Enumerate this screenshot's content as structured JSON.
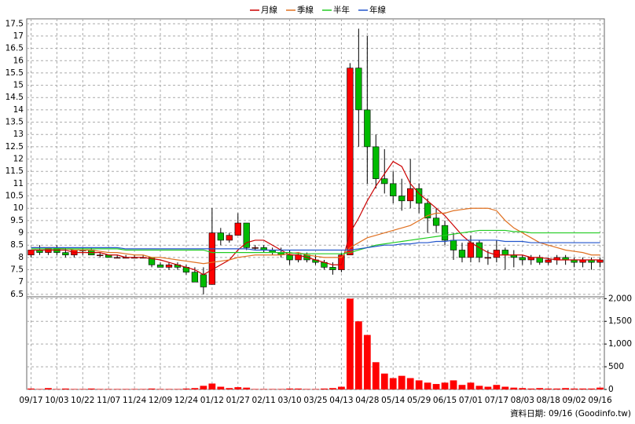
{
  "chart_data": {
    "type": "candlestick",
    "categories": [
      "09/17",
      null,
      null,
      "10/03",
      null,
      null,
      "10/22",
      null,
      null,
      "11/07",
      null,
      null,
      "11/24",
      null,
      null,
      "12/09",
      null,
      null,
      "12/24",
      null,
      null,
      "01/12",
      null,
      null,
      "01/27",
      null,
      null,
      "02/11",
      null,
      null,
      "03/10",
      null,
      null,
      "03/25",
      null,
      null,
      "04/13",
      null,
      null,
      "04/28",
      null,
      null,
      "05/14",
      null,
      null,
      "05/29",
      null,
      null,
      "06/15",
      null,
      null,
      "07/01",
      null,
      null,
      "07/17",
      null,
      null,
      "08/03",
      null,
      null,
      "08/18",
      null,
      null,
      "09/02",
      null,
      null,
      "09/16"
    ],
    "open": [
      8.1,
      8.3,
      8.2,
      8.4,
      8.2,
      8.1,
      8.3,
      8.3,
      8.1,
      8.1,
      8.0,
      8.0,
      8.0,
      8.0,
      8.0,
      7.7,
      7.6,
      7.7,
      7.6,
      7.4,
      7.3,
      6.9,
      9.0,
      8.7,
      8.9,
      9.4,
      8.4,
      8.4,
      8.3,
      8.2,
      8.1,
      7.9,
      8.1,
      7.9,
      7.8,
      7.6,
      7.5,
      8.1,
      15.7,
      14.0,
      12.5,
      11.2,
      11.0,
      10.5,
      10.3,
      10.8,
      10.2,
      9.6,
      9.3,
      8.7,
      8.3,
      8.0,
      8.6,
      8.0,
      8.0,
      8.3,
      8.1,
      8.0,
      7.9,
      8.0,
      7.8,
      7.9,
      8.0,
      7.9,
      7.8,
      7.9,
      7.8
    ],
    "high": [
      8.3,
      8.5,
      8.4,
      8.5,
      8.4,
      8.3,
      8.4,
      8.4,
      8.2,
      8.1,
      8.1,
      8.1,
      8.1,
      8.1,
      8.0,
      7.8,
      7.8,
      7.8,
      7.7,
      7.6,
      7.6,
      10.0,
      9.2,
      9.0,
      9.8,
      9.4,
      8.5,
      8.5,
      8.4,
      8.4,
      8.3,
      8.2,
      8.2,
      8.1,
      7.9,
      7.8,
      8.2,
      15.9,
      17.3,
      17.0,
      13.0,
      12.4,
      11.5,
      11.2,
      12.0,
      11.0,
      10.4,
      10.0,
      9.5,
      9.0,
      8.6,
      8.9,
      8.7,
      8.3,
      8.7,
      8.4,
      8.3,
      8.1,
      8.1,
      8.1,
      8.0,
      8.1,
      8.1,
      8.0,
      8.0,
      8.0,
      8.0
    ],
    "low": [
      8.0,
      8.1,
      8.1,
      8.1,
      8.0,
      8.0,
      8.1,
      8.1,
      8.0,
      8.0,
      8.0,
      8.0,
      8.0,
      8.0,
      7.6,
      7.6,
      7.5,
      7.5,
      7.3,
      7.0,
      6.5,
      6.9,
      8.5,
      8.6,
      8.9,
      8.3,
      8.3,
      8.2,
      8.1,
      8.0,
      7.7,
      7.8,
      7.8,
      7.7,
      7.5,
      7.3,
      7.4,
      8.1,
      12.5,
      11.0,
      10.8,
      10.6,
      10.2,
      9.9,
      10.0,
      9.8,
      9.0,
      9.0,
      8.5,
      7.9,
      7.8,
      7.8,
      7.8,
      7.7,
      7.8,
      7.5,
      7.6,
      7.7,
      7.7,
      7.7,
      7.7,
      7.7,
      7.7,
      7.6,
      7.6,
      7.5,
      7.6
    ],
    "close": [
      8.3,
      8.2,
      8.4,
      8.2,
      8.1,
      8.3,
      8.3,
      8.1,
      8.1,
      8.0,
      8.0,
      8.0,
      8.0,
      8.0,
      7.7,
      7.6,
      7.7,
      7.6,
      7.4,
      7.0,
      6.8,
      9.0,
      8.7,
      8.9,
      9.4,
      8.4,
      8.4,
      8.3,
      8.2,
      8.1,
      7.9,
      8.1,
      7.9,
      7.8,
      7.6,
      7.5,
      8.1,
      15.7,
      14.0,
      12.5,
      11.2,
      11.0,
      10.5,
      10.3,
      10.8,
      10.2,
      9.6,
      9.3,
      8.7,
      8.3,
      8.0,
      8.6,
      8.0,
      8.0,
      8.3,
      8.1,
      8.0,
      7.9,
      8.0,
      7.8,
      7.9,
      8.0,
      7.9,
      7.8,
      7.9,
      7.8,
      7.9
    ],
    "up_color": "#ff0000",
    "down_color": "#00bb00",
    "series": [
      {
        "name": "月線",
        "color": "#cc0000",
        "values": [
          8.3,
          8.3,
          8.3,
          8.3,
          8.3,
          8.2,
          8.2,
          8.2,
          8.2,
          8.1,
          8.1,
          8.0,
          8.0,
          8.0,
          7.95,
          7.9,
          7.8,
          7.7,
          7.6,
          7.5,
          7.3,
          7.5,
          7.7,
          7.9,
          8.3,
          8.6,
          8.7,
          8.7,
          8.5,
          8.3,
          8.1,
          8.1,
          8.0,
          7.9,
          7.8,
          7.7,
          7.7,
          9.0,
          9.6,
          10.3,
          10.9,
          11.4,
          11.9,
          11.7,
          11.0,
          10.6,
          10.3,
          10.0,
          9.7,
          9.3,
          8.9,
          8.6,
          8.4,
          8.2,
          8.1,
          8.1,
          8.1,
          8.1,
          8.0,
          8.0,
          7.95,
          7.9,
          7.9,
          7.9,
          7.9,
          7.9,
          7.9
        ]
      },
      {
        "name": "季線",
        "color": "#e07020",
        "values": [
          8.4,
          8.4,
          8.4,
          8.4,
          8.35,
          8.3,
          8.3,
          8.3,
          8.25,
          8.2,
          8.2,
          8.15,
          8.1,
          8.1,
          8.0,
          8.0,
          7.95,
          7.9,
          7.85,
          7.8,
          7.75,
          7.8,
          7.85,
          7.9,
          8.0,
          8.05,
          8.1,
          8.1,
          8.1,
          8.1,
          8.15,
          8.2,
          8.1,
          8.05,
          8.0,
          8.0,
          8.0,
          8.4,
          8.6,
          8.8,
          8.9,
          9.0,
          9.1,
          9.2,
          9.3,
          9.5,
          9.7,
          9.8,
          9.8,
          9.9,
          9.95,
          10.0,
          10.0,
          10.0,
          9.9,
          9.5,
          9.2,
          9.0,
          8.8,
          8.6,
          8.5,
          8.4,
          8.3,
          8.25,
          8.2,
          8.1,
          8.1
        ]
      },
      {
        "name": "半年",
        "color": "#22cc22",
        "values": [
          8.35,
          8.35,
          8.35,
          8.35,
          8.35,
          8.35,
          8.35,
          8.35,
          8.35,
          8.35,
          8.35,
          8.3,
          8.3,
          8.3,
          8.3,
          8.3,
          8.3,
          8.3,
          8.3,
          8.3,
          8.3,
          8.2,
          8.2,
          8.2,
          8.2,
          8.2,
          8.2,
          8.2,
          8.2,
          8.2,
          8.2,
          8.15,
          8.15,
          8.15,
          8.15,
          8.15,
          8.15,
          8.2,
          8.3,
          8.4,
          8.5,
          8.55,
          8.6,
          8.65,
          8.7,
          8.75,
          8.8,
          8.85,
          8.9,
          8.95,
          9.0,
          9.05,
          9.1,
          9.1,
          9.1,
          9.1,
          9.05,
          9.05,
          9.0,
          9.0,
          9.0,
          9.0,
          9.0,
          9.0,
          9.0,
          9.0,
          9.0
        ]
      },
      {
        "name": "年線",
        "color": "#2255cc",
        "values": [
          8.4,
          8.4,
          8.4,
          8.4,
          8.4,
          8.4,
          8.4,
          8.4,
          8.4,
          8.4,
          8.4,
          8.35,
          8.35,
          8.35,
          8.35,
          8.35,
          8.35,
          8.35,
          8.35,
          8.35,
          8.35,
          8.35,
          8.35,
          8.35,
          8.35,
          8.35,
          8.3,
          8.3,
          8.3,
          8.3,
          8.3,
          8.3,
          8.3,
          8.3,
          8.3,
          8.3,
          8.3,
          8.3,
          8.35,
          8.4,
          8.45,
          8.5,
          8.5,
          8.55,
          8.55,
          8.6,
          8.6,
          8.65,
          8.65,
          8.7,
          8.7,
          8.7,
          8.7,
          8.7,
          8.7,
          8.65,
          8.65,
          8.65,
          8.6,
          8.6,
          8.6,
          8.6,
          8.6,
          8.6,
          8.6,
          8.6,
          8.6
        ]
      }
    ],
    "ylim": [
      6.4,
      17.7
    ],
    "yticks": [
      6.5,
      7,
      7.5,
      8,
      8.5,
      9,
      9.5,
      10,
      10.5,
      11,
      11.5,
      12,
      12.5,
      13,
      13.5,
      14,
      14.5,
      15,
      15.5,
      16,
      16.5,
      17,
      17.5
    ],
    "volume": {
      "color": "#ff0000",
      "values": [
        20,
        10,
        30,
        10,
        20,
        10,
        10,
        20,
        10,
        10,
        10,
        10,
        10,
        10,
        20,
        10,
        10,
        10,
        20,
        30,
        80,
        130,
        60,
        30,
        50,
        40,
        10,
        10,
        10,
        10,
        20,
        20,
        10,
        10,
        20,
        30,
        60,
        2000,
        1500,
        1200,
        600,
        350,
        250,
        300,
        250,
        200,
        150,
        120,
        150,
        200,
        100,
        150,
        80,
        60,
        100,
        60,
        40,
        30,
        20,
        30,
        20,
        20,
        30,
        20,
        20,
        20,
        40
      ]
    },
    "y2lim": [
      0,
      2040
    ],
    "y2ticks": [
      0,
      500,
      {
        "value": 1000,
        "label": "1,000"
      },
      {
        "value": 1500,
        "label": "1,500"
      },
      {
        "value": 2000,
        "label": "2,000"
      }
    ],
    "grid": true,
    "footer": "資料日期: 09/16 (Goodinfo.tw)"
  }
}
